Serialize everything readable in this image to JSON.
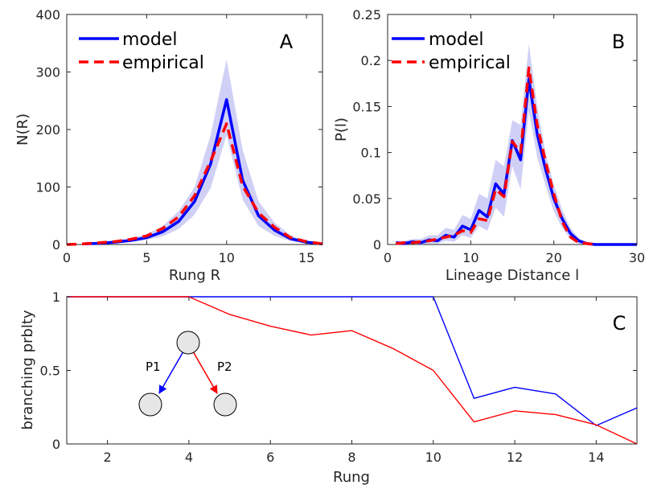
{
  "colors": {
    "model": "#0000ff",
    "empirical": "#ff0000",
    "band": "#c8c8f5",
    "axis": "#262626",
    "node": "#e6e6e6"
  },
  "chart_data": [
    {
      "panel": "A",
      "type": "line",
      "xlabel": "Rung R",
      "ylabel": "N(R)",
      "xlim": [
        0,
        16
      ],
      "ylim": [
        0,
        400
      ],
      "xticks": [
        0,
        5,
        10,
        15
      ],
      "yticks": [
        0,
        100,
        200,
        300,
        400
      ],
      "legend": {
        "placement": "top-left",
        "entries": [
          "model",
          "empirical"
        ]
      },
      "series": [
        {
          "name": "model",
          "style": "solid",
          "x": [
            1,
            2,
            3,
            4,
            5,
            6,
            7,
            8,
            9,
            10,
            11,
            12,
            13,
            14,
            15,
            16
          ],
          "values": [
            1,
            2,
            4,
            7,
            12,
            22,
            40,
            75,
            140,
            252,
            112,
            50,
            25,
            10,
            4,
            1
          ]
        },
        {
          "name": "empirical",
          "style": "dashed",
          "x": [
            0,
            1,
            2,
            3,
            4,
            5,
            6,
            7,
            8,
            9,
            10,
            11,
            12,
            13,
            14,
            15,
            16
          ],
          "values": [
            0,
            1,
            3,
            5,
            9,
            15,
            28,
            48,
            85,
            145,
            210,
            102,
            55,
            30,
            12,
            5,
            1
          ]
        }
      ],
      "band": {
        "x": [
          1,
          2,
          3,
          4,
          5,
          6,
          7,
          8,
          9,
          10,
          11,
          12,
          13,
          14,
          15,
          16
        ],
        "upper": [
          2,
          4,
          7,
          11,
          18,
          32,
          58,
          100,
          190,
          322,
          165,
          75,
          38,
          16,
          6,
          2
        ],
        "lower": [
          0,
          1,
          2,
          4,
          8,
          14,
          27,
          52,
          98,
          190,
          78,
          32,
          15,
          6,
          2,
          0
        ]
      }
    },
    {
      "panel": "B",
      "type": "line",
      "xlabel": "Lineage Distance l",
      "ylabel": "P(l)",
      "xlim": [
        0,
        30
      ],
      "ylim": [
        0,
        0.25
      ],
      "xticks": [
        0,
        10,
        20,
        30
      ],
      "yticks": [
        0,
        0.05,
        0.1,
        0.15,
        0.2,
        0.25
      ],
      "ytick_labels": [
        "0",
        "0.05",
        "0.1",
        "0.15",
        "0.2",
        "0.25"
      ],
      "legend": {
        "placement": "top-left",
        "entries": [
          "model",
          "empirical"
        ]
      },
      "series": [
        {
          "name": "model",
          "style": "solid",
          "x": [
            1,
            2,
            3,
            4,
            5,
            6,
            7,
            8,
            9,
            10,
            11,
            12,
            13,
            14,
            15,
            16,
            17,
            18,
            19,
            20,
            21,
            22,
            23,
            24,
            25,
            26,
            27,
            28,
            29,
            30
          ],
          "values": [
            0.002,
            0.001,
            0.003,
            0.002,
            0.005,
            0.004,
            0.01,
            0.008,
            0.02,
            0.016,
            0.037,
            0.03,
            0.066,
            0.055,
            0.113,
            0.092,
            0.18,
            0.12,
            0.082,
            0.05,
            0.028,
            0.012,
            0.004,
            0.001,
            0,
            0,
            0,
            0,
            0,
            0
          ]
        },
        {
          "name": "empirical",
          "style": "dashed",
          "x": [
            1,
            2,
            3,
            4,
            5,
            6,
            7,
            8,
            9,
            10,
            11,
            12,
            13,
            14,
            15,
            16,
            17,
            18,
            19,
            20,
            21,
            22,
            23,
            24,
            25
          ],
          "values": [
            0.001,
            0.002,
            0.002,
            0.003,
            0.004,
            0.006,
            0.008,
            0.01,
            0.015,
            0.013,
            0.028,
            0.026,
            0.06,
            0.052,
            0.112,
            0.1,
            0.192,
            0.13,
            0.09,
            0.055,
            0.025,
            0.008,
            0.002,
            0.001,
            0
          ]
        }
      ],
      "band": {
        "x": [
          1,
          2,
          3,
          4,
          5,
          6,
          7,
          8,
          9,
          10,
          11,
          12,
          13,
          14,
          15,
          16,
          17,
          18,
          19,
          20,
          21,
          22,
          23,
          24,
          25
        ],
        "upper": [
          0.004,
          0.004,
          0.006,
          0.006,
          0.01,
          0.01,
          0.018,
          0.016,
          0.032,
          0.028,
          0.055,
          0.05,
          0.092,
          0.085,
          0.135,
          0.13,
          0.218,
          0.15,
          0.1,
          0.065,
          0.038,
          0.018,
          0.007,
          0.002,
          0.001
        ],
        "lower": [
          0,
          0,
          0.001,
          0,
          0.001,
          0.001,
          0.004,
          0.003,
          0.01,
          0.007,
          0.02,
          0.015,
          0.04,
          0.03,
          0.085,
          0.06,
          0.145,
          0.095,
          0.064,
          0.036,
          0.018,
          0.006,
          0.001,
          0,
          0
        ]
      }
    },
    {
      "panel": "C",
      "type": "line",
      "xlabel": "Rung",
      "ylabel": "branching prblty",
      "xlim": [
        1,
        15
      ],
      "ylim": [
        0,
        1
      ],
      "xticks": [
        2,
        4,
        6,
        8,
        10,
        12,
        14
      ],
      "yticks": [
        0,
        0.5,
        1
      ],
      "ytick_labels": [
        "0",
        "0.5",
        "1"
      ],
      "series": [
        {
          "name": "P1",
          "color": "blue",
          "x": [
            1,
            2,
            3,
            4,
            5,
            6,
            7,
            8,
            9,
            10,
            11,
            12,
            13,
            14,
            15
          ],
          "values": [
            1,
            1,
            1,
            1,
            1,
            1,
            1,
            1,
            1,
            1,
            0.31,
            0.385,
            0.34,
            0.125,
            0.245
          ]
        },
        {
          "name": "P2",
          "color": "red",
          "x": [
            1,
            2,
            3,
            4,
            5,
            6,
            7,
            8,
            9,
            10,
            11,
            12,
            13,
            14,
            15
          ],
          "values": [
            1,
            1,
            1,
            1,
            0.88,
            0.8,
            0.74,
            0.77,
            0.65,
            0.5,
            0.15,
            0.225,
            0.2,
            0.13,
            0
          ]
        }
      ],
      "inset": {
        "left_label": "P1",
        "right_label": "P2"
      }
    }
  ]
}
